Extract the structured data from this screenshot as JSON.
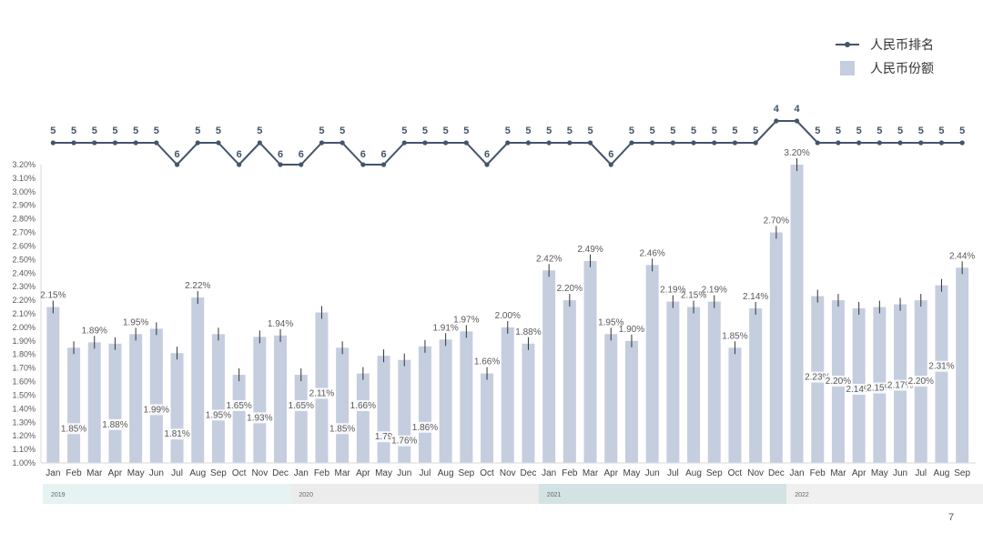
{
  "legend": {
    "rank_label": "人民币排名",
    "share_label": "人民币份额"
  },
  "page_number": "7",
  "colors": {
    "bar": "#c5cedf",
    "line": "#44546a",
    "label": "#595959",
    "year_band_a": "#e6f3f3",
    "year_band_b": "#ececec",
    "year_band_c": "#d3e2e2",
    "year_band_d": "#f0f0f0"
  },
  "chart_data": {
    "type": "bar",
    "categories": [
      "Jan",
      "Feb",
      "Mar",
      "Apr",
      "May",
      "Jun",
      "Jul",
      "Aug",
      "Sep",
      "Oct",
      "Nov",
      "Dec",
      "Jan",
      "Feb",
      "Mar",
      "Apr",
      "May",
      "Jun",
      "Jul",
      "Aug",
      "Sep",
      "Oct",
      "Nov",
      "Dec",
      "Jan",
      "Feb",
      "Mar",
      "Apr",
      "May",
      "Jun",
      "Jul",
      "Aug",
      "Sep",
      "Oct",
      "Nov",
      "Dec",
      "Jan",
      "Feb",
      "Mar",
      "Apr",
      "May",
      "Jun",
      "Jul",
      "Aug",
      "Sep"
    ],
    "years": [
      {
        "label": "2019",
        "start": 0,
        "count": 12
      },
      {
        "label": "2020",
        "start": 12,
        "count": 12
      },
      {
        "label": "2021",
        "start": 24,
        "count": 12
      },
      {
        "label": "2022",
        "start": 36,
        "count": 9
      }
    ],
    "share_values": [
      2.15,
      1.85,
      1.89,
      1.88,
      1.95,
      1.99,
      1.81,
      2.22,
      1.95,
      1.65,
      1.93,
      1.94,
      1.65,
      2.11,
      1.85,
      1.66,
      1.79,
      1.76,
      1.86,
      1.91,
      1.97,
      1.66,
      2.0,
      1.88,
      2.42,
      2.2,
      2.49,
      1.95,
      1.9,
      2.46,
      2.19,
      2.15,
      2.19,
      1.85,
      2.14,
      2.7,
      3.2,
      2.23,
      2.2,
      2.14,
      2.15,
      2.17,
      2.2,
      2.31,
      2.44
    ],
    "share_labels": [
      "2.15%",
      "1.85%",
      "1.89%",
      "1.88%",
      "1.95%",
      "1.99%",
      "1.81%",
      "2.22%",
      "1.95%",
      "1.65%",
      "1.93%",
      "1.94%",
      "1.65%",
      "2.11%",
      "1.85%",
      "1.66%",
      "1.79",
      "1.76%",
      "1.86%",
      "1.91%",
      "1.97%",
      "1.66%",
      "2.00%",
      "1.88%",
      "2.42%",
      "2.20%",
      "2.49%",
      "1.95%",
      "1.90%",
      "2.46%",
      "2.19%",
      "2.15%",
      "2.19%",
      "1.85%",
      "2.14%",
      "2.70%",
      "3.20%",
      "2.23%",
      "2.20%",
      "2.14%",
      "2.15%",
      "2.17%",
      "2.20%",
      "2.31%",
      "2.44%"
    ],
    "label_inside": [
      false,
      true,
      false,
      true,
      false,
      true,
      true,
      false,
      true,
      true,
      true,
      false,
      true,
      true,
      true,
      true,
      true,
      true,
      true,
      false,
      false,
      false,
      false,
      false,
      false,
      false,
      false,
      false,
      false,
      false,
      false,
      false,
      false,
      false,
      false,
      false,
      false,
      true,
      true,
      true,
      true,
      true,
      true,
      true,
      false
    ],
    "rank_values": [
      5,
      5,
      5,
      5,
      5,
      5,
      6,
      5,
      5,
      6,
      5,
      6,
      6,
      5,
      5,
      6,
      6,
      5,
      5,
      5,
      5,
      6,
      5,
      5,
      5,
      5,
      5,
      6,
      5,
      5,
      5,
      5,
      5,
      5,
      5,
      4,
      4,
      5,
      5,
      5,
      5,
      5,
      5,
      5,
      5
    ],
    "y_ticks": [
      "3.20%",
      "3.10%",
      "3.00%",
      "2.90%",
      "2.80%",
      "2.70%",
      "2.60%",
      "2.50%",
      "2.40%",
      "2.30%",
      "2.20%",
      "2.10%",
      "2.00%",
      "1.90%",
      "1.80%",
      "1.70%",
      "1.60%",
      "1.50%",
      "1.40%",
      "1.30%",
      "1.20%",
      "1.10%",
      "1.00%"
    ],
    "ylim": [
      1.0,
      3.2
    ],
    "grid": false,
    "legend_position": "top-right"
  }
}
